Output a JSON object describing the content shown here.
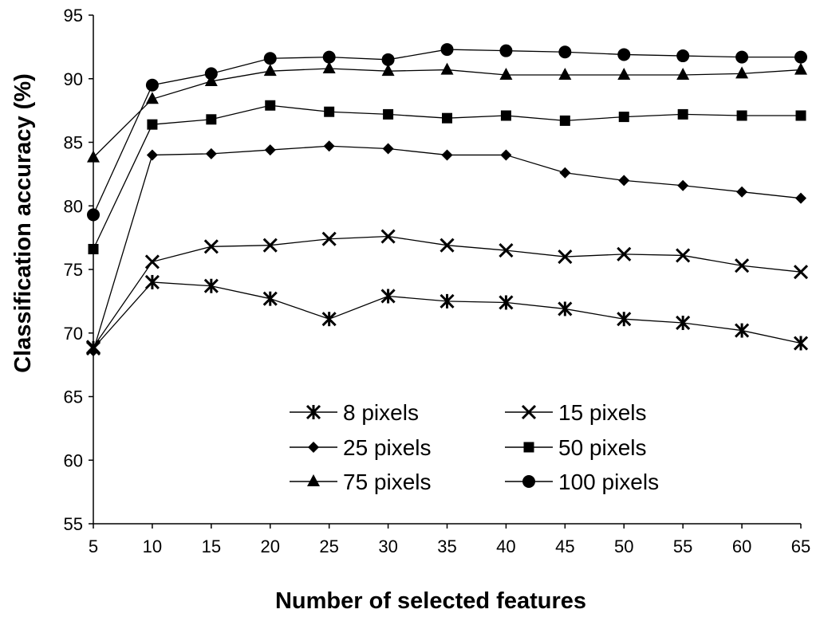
{
  "chart_data": {
    "type": "line",
    "title": "",
    "xlabel": "Number of selected features",
    "ylabel": "Classification accuracy (%)",
    "x": [
      5,
      10,
      15,
      20,
      25,
      30,
      35,
      40,
      45,
      50,
      55,
      60,
      65
    ],
    "xlim": [
      5,
      65
    ],
    "ylim": [
      55,
      95
    ],
    "x_ticks": [
      "5",
      "10",
      "15",
      "20",
      "25",
      "30",
      "35",
      "40",
      "45",
      "50",
      "55",
      "60",
      "65"
    ],
    "y_ticks": [
      "55",
      "60",
      "65",
      "70",
      "75",
      "80",
      "85",
      "90",
      "95"
    ],
    "grid": false,
    "legend_position": "bottom-center",
    "series": [
      {
        "name": "8 pixels",
        "marker": "asterisk",
        "values": [
          68.8,
          74.0,
          73.7,
          72.7,
          71.1,
          72.9,
          72.5,
          72.4,
          71.9,
          71.1,
          70.8,
          70.2,
          69.2
        ]
      },
      {
        "name": "15 pixels",
        "marker": "x",
        "values": [
          68.9,
          75.6,
          76.8,
          76.9,
          77.4,
          77.6,
          76.9,
          76.5,
          76.0,
          76.2,
          76.1,
          75.3,
          74.8
        ]
      },
      {
        "name": "25 pixels",
        "marker": "diamond",
        "values": [
          68.6,
          84.0,
          84.1,
          84.4,
          84.7,
          84.5,
          84.0,
          84.0,
          82.6,
          82.0,
          81.6,
          81.1,
          80.6
        ]
      },
      {
        "name": "50 pixels",
        "marker": "square",
        "values": [
          76.6,
          86.4,
          86.8,
          87.9,
          87.4,
          87.2,
          86.9,
          87.1,
          86.7,
          87.0,
          87.2,
          87.1,
          87.1
        ]
      },
      {
        "name": "75 pixels",
        "marker": "triangle",
        "values": [
          83.8,
          88.4,
          89.8,
          90.6,
          90.8,
          90.6,
          90.7,
          90.3,
          90.3,
          90.3,
          90.3,
          90.4,
          90.7
        ]
      },
      {
        "name": "100 pixels",
        "marker": "circle",
        "values": [
          79.3,
          89.5,
          90.4,
          91.6,
          91.7,
          91.5,
          92.3,
          92.2,
          92.1,
          91.9,
          91.8,
          91.7,
          91.7
        ]
      }
    ],
    "style": {
      "line_color": "#000000",
      "marker_color": "#000000",
      "background": "#ffffff"
    }
  }
}
